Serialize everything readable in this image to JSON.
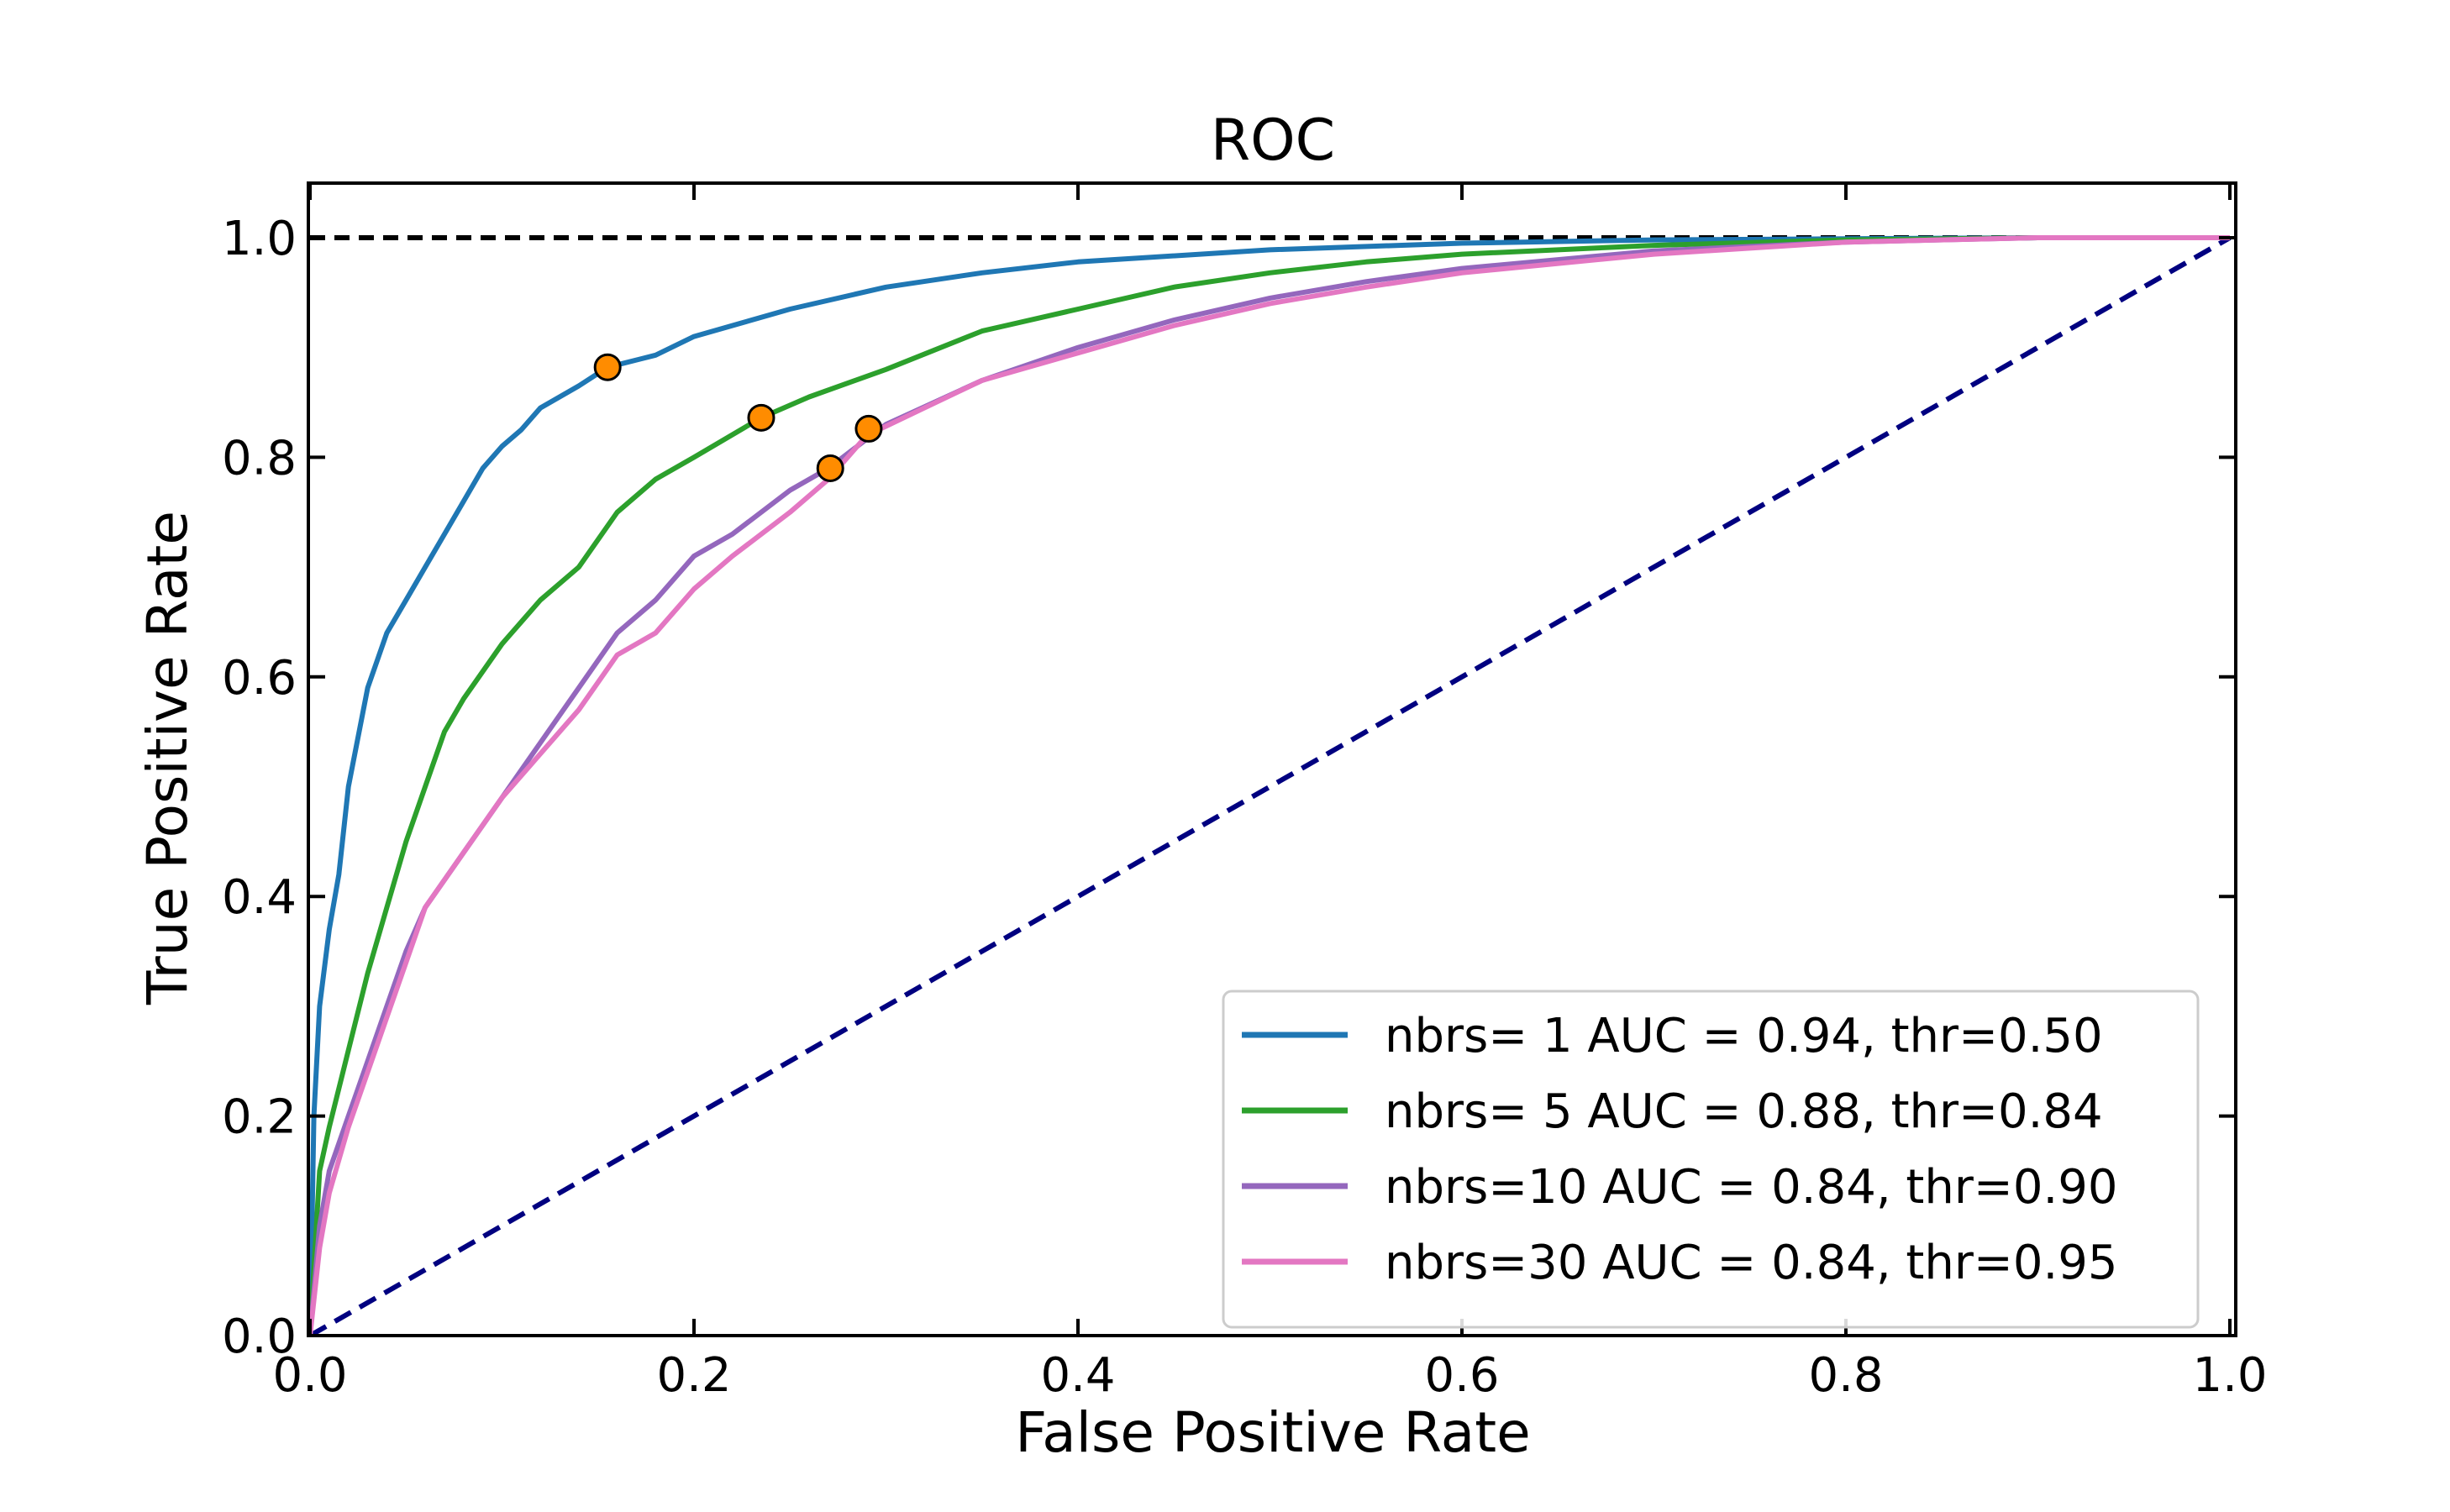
{
  "chart_data": {
    "type": "line",
    "title": "ROC",
    "xlabel": "False Positive Rate",
    "ylabel": "True Positive Rate",
    "xlim": [
      0.0,
      1.0
    ],
    "ylim": [
      0.0,
      1.0
    ],
    "xticks": [
      "0.0",
      "0.2",
      "0.4",
      "0.6",
      "0.8",
      "1.0"
    ],
    "yticks": [
      "0.0",
      "0.2",
      "0.4",
      "0.6",
      "0.8",
      "1.0"
    ],
    "grid": false,
    "legend_position": "lower-right",
    "reference_lines": [
      {
        "kind": "diagonal",
        "color": "#000080",
        "style": "dashed",
        "points": [
          [
            0,
            0
          ],
          [
            1,
            1
          ]
        ]
      },
      {
        "kind": "perfect",
        "color": "#000000",
        "style": "dashed",
        "points": [
          [
            0,
            1
          ],
          [
            1,
            1
          ]
        ]
      }
    ],
    "series": [
      {
        "name": "nbrs= 1 AUC = 0.94, thr=0.50",
        "color": "#1f77b4",
        "x": [
          0,
          0.002,
          0.005,
          0.01,
          0.015,
          0.02,
          0.03,
          0.04,
          0.05,
          0.06,
          0.07,
          0.08,
          0.09,
          0.1,
          0.11,
          0.12,
          0.14,
          0.155,
          0.18,
          0.2,
          0.25,
          0.3,
          0.35,
          0.4,
          0.5,
          0.6,
          0.7,
          0.8,
          0.9,
          1.0
        ],
        "y": [
          0,
          0.2,
          0.3,
          0.37,
          0.42,
          0.5,
          0.59,
          0.64,
          0.67,
          0.7,
          0.73,
          0.76,
          0.79,
          0.81,
          0.825,
          0.845,
          0.865,
          0.882,
          0.893,
          0.91,
          0.935,
          0.955,
          0.968,
          0.978,
          0.989,
          0.995,
          0.998,
          0.999,
          1.0,
          1.0
        ]
      },
      {
        "name": "nbrs= 5 AUC = 0.88, thr=0.84",
        "color": "#2ca02c",
        "x": [
          0,
          0.005,
          0.01,
          0.02,
          0.03,
          0.04,
          0.05,
          0.06,
          0.07,
          0.08,
          0.1,
          0.12,
          0.14,
          0.16,
          0.18,
          0.2,
          0.235,
          0.26,
          0.3,
          0.35,
          0.4,
          0.45,
          0.5,
          0.55,
          0.6,
          0.7,
          0.8,
          0.9,
          1.0
        ],
        "y": [
          0,
          0.15,
          0.19,
          0.26,
          0.33,
          0.39,
          0.45,
          0.5,
          0.55,
          0.58,
          0.63,
          0.67,
          0.7,
          0.75,
          0.78,
          0.8,
          0.836,
          0.855,
          0.88,
          0.915,
          0.935,
          0.955,
          0.968,
          0.978,
          0.985,
          0.993,
          0.998,
          1.0,
          1.0
        ]
      },
      {
        "name": "nbrs=10 AUC = 0.84, thr=0.90",
        "color": "#9467bd",
        "x": [
          0,
          0.005,
          0.01,
          0.02,
          0.03,
          0.04,
          0.05,
          0.06,
          0.08,
          0.1,
          0.12,
          0.14,
          0.16,
          0.18,
          0.2,
          0.22,
          0.25,
          0.27,
          0.3,
          0.35,
          0.4,
          0.45,
          0.5,
          0.55,
          0.6,
          0.7,
          0.8,
          0.9,
          1.0
        ],
        "y": [
          0,
          0.1,
          0.15,
          0.2,
          0.25,
          0.3,
          0.35,
          0.39,
          0.44,
          0.49,
          0.54,
          0.59,
          0.64,
          0.67,
          0.71,
          0.73,
          0.77,
          0.79,
          0.83,
          0.87,
          0.9,
          0.925,
          0.945,
          0.96,
          0.972,
          0.988,
          0.996,
          1.0,
          1.0
        ]
      },
      {
        "name": "nbrs=30 AUC = 0.84, thr=0.95",
        "color": "#e377c2",
        "x": [
          0,
          0.005,
          0.01,
          0.02,
          0.03,
          0.04,
          0.05,
          0.06,
          0.08,
          0.1,
          0.12,
          0.14,
          0.16,
          0.18,
          0.2,
          0.22,
          0.25,
          0.27,
          0.29,
          0.32,
          0.35,
          0.4,
          0.45,
          0.5,
          0.55,
          0.6,
          0.7,
          0.8,
          0.9,
          1.0
        ],
        "y": [
          0,
          0.08,
          0.13,
          0.19,
          0.24,
          0.29,
          0.34,
          0.39,
          0.44,
          0.49,
          0.53,
          0.57,
          0.62,
          0.64,
          0.68,
          0.71,
          0.75,
          0.78,
          0.82,
          0.845,
          0.87,
          0.895,
          0.92,
          0.94,
          0.955,
          0.968,
          0.985,
          0.996,
          1.0,
          1.0
        ]
      }
    ],
    "threshold_points": {
      "color": "#ff8c00",
      "points": [
        {
          "series": "nbrs= 1 AUC = 0.94, thr=0.50",
          "x": 0.155,
          "y": 0.882
        },
        {
          "series": "nbrs= 5 AUC = 0.88, thr=0.84",
          "x": 0.235,
          "y": 0.836
        },
        {
          "series": "nbrs=10 AUC = 0.84, thr=0.90",
          "x": 0.291,
          "y": 0.826
        },
        {
          "series": "nbrs=30 AUC = 0.84, thr=0.95",
          "x": 0.271,
          "y": 0.79
        }
      ]
    }
  }
}
